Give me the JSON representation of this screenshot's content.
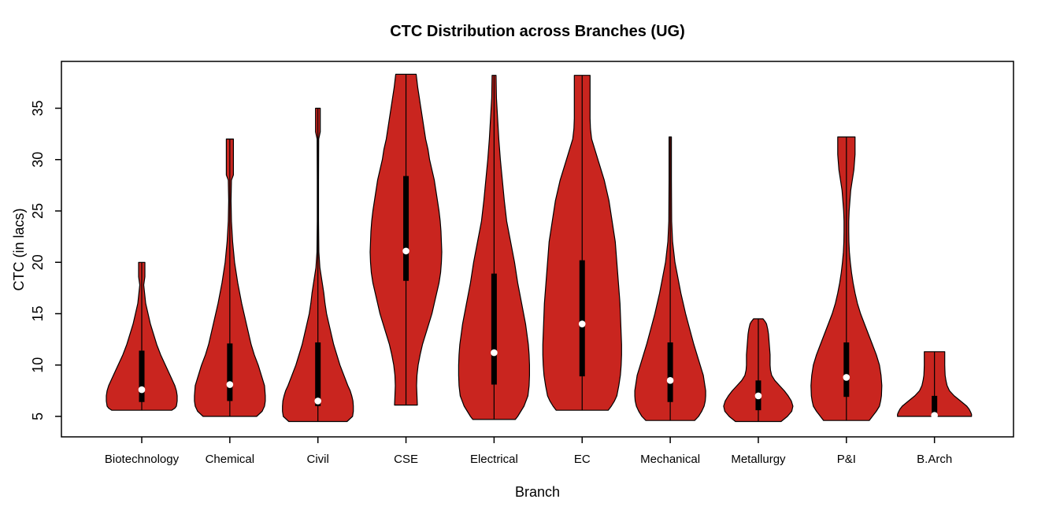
{
  "chart_data": {
    "type": "violin",
    "title": "CTC Distribution across Branches (UG)",
    "xlabel": "Branch",
    "ylabel": "CTC (in lacs)",
    "y_ticks": [
      5,
      10,
      15,
      20,
      25,
      30,
      35
    ],
    "ylim": [
      2.8,
      39.6
    ],
    "grid": false,
    "legend": "none",
    "colors": {
      "violin_fill": "#C9251F",
      "violin_stroke": "#000000",
      "box": "#000000",
      "median_dot": "#FFFFFF",
      "axis": "#000000"
    },
    "categories": [
      "Biotechnology",
      "Chemical",
      "Civil",
      "CSE",
      "Electrical",
      "EC",
      "Mechanical",
      "Metallurgy",
      "P&I",
      "B.Arch"
    ],
    "series": [
      {
        "label": "Biotechnology",
        "min": 5.6,
        "max": 20,
        "q1": 6.4,
        "median": 7.6,
        "q3": 11.4,
        "profile_value_halfwidthpx": [
          [
            20,
            4
          ],
          [
            18.6,
            4
          ],
          [
            17.8,
            2.5
          ],
          [
            16,
            5
          ],
          [
            15,
            8
          ],
          [
            14,
            11
          ],
          [
            13,
            15
          ],
          [
            12,
            19
          ],
          [
            11,
            24
          ],
          [
            10,
            30
          ],
          [
            9,
            36
          ],
          [
            8,
            42
          ],
          [
            7.5,
            44
          ],
          [
            7,
            45
          ],
          [
            6.5,
            45
          ],
          [
            6,
            44
          ],
          [
            5.8,
            42
          ],
          [
            5.6,
            38
          ]
        ]
      },
      {
        "label": "Chemical",
        "min": 5.0,
        "max": 32,
        "q1": 6.5,
        "median": 8.1,
        "q3": 12.1,
        "profile_value_halfwidthpx": [
          [
            32,
            4.5
          ],
          [
            28.5,
            4.5
          ],
          [
            28,
            2
          ],
          [
            26,
            1.5
          ],
          [
            24,
            2
          ],
          [
            22,
            3.5
          ],
          [
            20,
            6
          ],
          [
            18,
            10
          ],
          [
            16,
            15
          ],
          [
            14,
            21
          ],
          [
            12,
            27
          ],
          [
            11,
            31
          ],
          [
            10,
            36
          ],
          [
            9,
            40
          ],
          [
            8,
            44
          ],
          [
            7,
            45
          ],
          [
            6.5,
            45
          ],
          [
            6,
            44
          ],
          [
            5.5,
            41
          ],
          [
            5,
            34
          ]
        ]
      },
      {
        "label": "Civil",
        "min": 4.5,
        "max": 35,
        "q1": 6.0,
        "median": 6.5,
        "q3": 12.2,
        "profile_value_halfwidthpx": [
          [
            35,
            3
          ],
          [
            32.7,
            3
          ],
          [
            32,
            1
          ],
          [
            28,
            0.8
          ],
          [
            24,
            0.8
          ],
          [
            21,
            1.2
          ],
          [
            19.5,
            2.5
          ],
          [
            19,
            3.5
          ],
          [
            18,
            5.5
          ],
          [
            17,
            7.5
          ],
          [
            16,
            9
          ],
          [
            15,
            11
          ],
          [
            14,
            14
          ],
          [
            13,
            17
          ],
          [
            12,
            20
          ],
          [
            11,
            24
          ],
          [
            10,
            28
          ],
          [
            9,
            33
          ],
          [
            8,
            38
          ],
          [
            7.5,
            41
          ],
          [
            7,
            43
          ],
          [
            6.5,
            44.5
          ],
          [
            6,
            45
          ],
          [
            5.5,
            45
          ],
          [
            5,
            44
          ],
          [
            4.5,
            37
          ]
        ]
      },
      {
        "label": "CSE",
        "min": 6.1,
        "max": 38.3,
        "q1": 18.2,
        "median": 21.1,
        "q3": 28.4,
        "profile_value_halfwidthpx": [
          [
            38.3,
            13
          ],
          [
            37,
            15
          ],
          [
            36,
            17
          ],
          [
            35,
            19
          ],
          [
            34,
            21
          ],
          [
            33,
            23
          ],
          [
            32,
            25
          ],
          [
            31,
            28
          ],
          [
            30,
            30
          ],
          [
            29,
            33
          ],
          [
            28,
            36
          ],
          [
            27,
            38
          ],
          [
            26,
            40
          ],
          [
            25,
            42
          ],
          [
            24,
            43.5
          ],
          [
            23,
            44.5
          ],
          [
            22,
            45
          ],
          [
            21,
            45.5
          ],
          [
            20,
            45
          ],
          [
            19,
            44
          ],
          [
            18,
            42
          ],
          [
            17,
            39
          ],
          [
            16,
            36
          ],
          [
            15,
            33
          ],
          [
            14,
            29
          ],
          [
            13,
            25
          ],
          [
            12,
            21
          ],
          [
            11,
            18
          ],
          [
            10,
            15.5
          ],
          [
            9,
            14
          ],
          [
            8,
            13.5
          ],
          [
            7,
            14
          ],
          [
            6.1,
            14.5
          ]
        ]
      },
      {
        "label": "Electrical",
        "min": 4.7,
        "max": 38.2,
        "q1": 8.1,
        "median": 11.2,
        "q3": 18.9,
        "profile_value_halfwidthpx": [
          [
            38.2,
            2.5
          ],
          [
            36,
            3
          ],
          [
            34,
            4.5
          ],
          [
            32,
            6
          ],
          [
            30,
            8
          ],
          [
            28,
            10.5
          ],
          [
            26,
            13
          ],
          [
            24,
            16
          ],
          [
            22,
            21
          ],
          [
            20,
            26
          ],
          [
            18,
            30
          ],
          [
            16,
            35
          ],
          [
            14,
            40
          ],
          [
            12,
            43.5
          ],
          [
            11,
            44.5
          ],
          [
            10,
            45
          ],
          [
            9,
            45
          ],
          [
            8,
            44.5
          ],
          [
            7,
            43
          ],
          [
            6,
            38
          ],
          [
            5.5,
            34
          ],
          [
            5,
            30
          ],
          [
            4.7,
            27
          ]
        ]
      },
      {
        "label": "EC",
        "min": 5.6,
        "max": 38.2,
        "q1": 8.9,
        "median": 14.0,
        "q3": 20.2,
        "profile_value_halfwidthpx": [
          [
            38.2,
            10
          ],
          [
            34,
            10
          ],
          [
            33,
            10.5
          ],
          [
            32,
            12
          ],
          [
            31,
            16
          ],
          [
            30,
            20
          ],
          [
            29,
            24
          ],
          [
            28,
            28
          ],
          [
            27,
            31
          ],
          [
            26,
            34
          ],
          [
            25,
            36
          ],
          [
            24,
            38
          ],
          [
            23,
            40
          ],
          [
            22,
            42
          ],
          [
            21,
            43
          ],
          [
            20,
            44
          ],
          [
            19,
            45
          ],
          [
            18,
            46
          ],
          [
            17,
            47
          ],
          [
            16,
            48
          ],
          [
            15,
            48.5
          ],
          [
            14,
            49
          ],
          [
            13,
            49.5
          ],
          [
            12,
            50
          ],
          [
            11,
            50
          ],
          [
            10,
            49.5
          ],
          [
            9,
            48.5
          ],
          [
            8,
            46.5
          ],
          [
            7,
            44
          ],
          [
            6.5,
            41
          ],
          [
            6,
            37
          ],
          [
            5.6,
            33
          ]
        ]
      },
      {
        "label": "Mechanical",
        "min": 4.6,
        "max": 32.2,
        "q1": 6.4,
        "median": 8.5,
        "q3": 12.2,
        "profile_value_halfwidthpx": [
          [
            32.2,
            1.5
          ],
          [
            28,
            1.5
          ],
          [
            24,
            1.8
          ],
          [
            22,
            3
          ],
          [
            21,
            4.5
          ],
          [
            20,
            6
          ],
          [
            19,
            8.5
          ],
          [
            18,
            11
          ],
          [
            17,
            13.5
          ],
          [
            16,
            16.5
          ],
          [
            15,
            19.5
          ],
          [
            14,
            23
          ],
          [
            13,
            26.5
          ],
          [
            12,
            30
          ],
          [
            11,
            34
          ],
          [
            10,
            38
          ],
          [
            9,
            42
          ],
          [
            8,
            44
          ],
          [
            7.5,
            45
          ],
          [
            7,
            45
          ],
          [
            6.5,
            44.5
          ],
          [
            6,
            43
          ],
          [
            5.5,
            40
          ],
          [
            5,
            36
          ],
          [
            4.6,
            31
          ]
        ]
      },
      {
        "label": "Metallurgy",
        "min": 4.5,
        "max": 14.5,
        "q1": 5.6,
        "median": 7.0,
        "q3": 8.5,
        "profile_value_halfwidthpx": [
          [
            14.5,
            6
          ],
          [
            14.2,
            9
          ],
          [
            14,
            10.5
          ],
          [
            13.5,
            12
          ],
          [
            13,
            13
          ],
          [
            12,
            14
          ],
          [
            11,
            15
          ],
          [
            10,
            15
          ],
          [
            9.5,
            15.5
          ],
          [
            9,
            17
          ],
          [
            8.5,
            21
          ],
          [
            8,
            27
          ],
          [
            7.5,
            33
          ],
          [
            7,
            38
          ],
          [
            6.5,
            42
          ],
          [
            6,
            44
          ],
          [
            5.5,
            42.5
          ],
          [
            5,
            37
          ],
          [
            4.5,
            29
          ]
        ]
      },
      {
        "label": "P&I",
        "min": 4.6,
        "max": 32.2,
        "q1": 6.9,
        "median": 8.8,
        "q3": 12.2,
        "profile_value_halfwidthpx": [
          [
            32.2,
            11
          ],
          [
            30.5,
            11
          ],
          [
            30,
            10.5
          ],
          [
            29,
            9.5
          ],
          [
            28,
            7.5
          ],
          [
            27,
            5.5
          ],
          [
            26,
            4.5
          ],
          [
            25,
            3.5
          ],
          [
            24,
            3
          ],
          [
            23,
            3
          ],
          [
            22,
            3.2
          ],
          [
            21,
            3.8
          ],
          [
            20,
            5
          ],
          [
            19,
            6.5
          ],
          [
            18,
            8.5
          ],
          [
            17,
            11
          ],
          [
            16,
            14
          ],
          [
            15,
            18
          ],
          [
            14,
            23
          ],
          [
            13,
            28
          ],
          [
            12,
            33
          ],
          [
            11,
            38
          ],
          [
            10,
            42
          ],
          [
            9,
            44
          ],
          [
            8,
            45
          ],
          [
            7,
            44.5
          ],
          [
            6.5,
            43.5
          ],
          [
            6,
            42
          ],
          [
            5.5,
            38
          ],
          [
            5,
            33
          ],
          [
            4.6,
            29
          ]
        ]
      },
      {
        "label": "B.Arch",
        "min": 5.0,
        "max": 11.3,
        "q1": 5.1,
        "median": 5.1,
        "q3": 7.0,
        "profile_value_halfwidthpx": [
          [
            11.3,
            13
          ],
          [
            10.5,
            13
          ],
          [
            10,
            13
          ],
          [
            9.5,
            13.2
          ],
          [
            9,
            13.5
          ],
          [
            8.5,
            14.5
          ],
          [
            8,
            16
          ],
          [
            7.5,
            19
          ],
          [
            7,
            25
          ],
          [
            6.5,
            33
          ],
          [
            6,
            41
          ],
          [
            5.7,
            44
          ],
          [
            5.4,
            46
          ],
          [
            5.2,
            47
          ],
          [
            5,
            47
          ]
        ]
      }
    ]
  }
}
